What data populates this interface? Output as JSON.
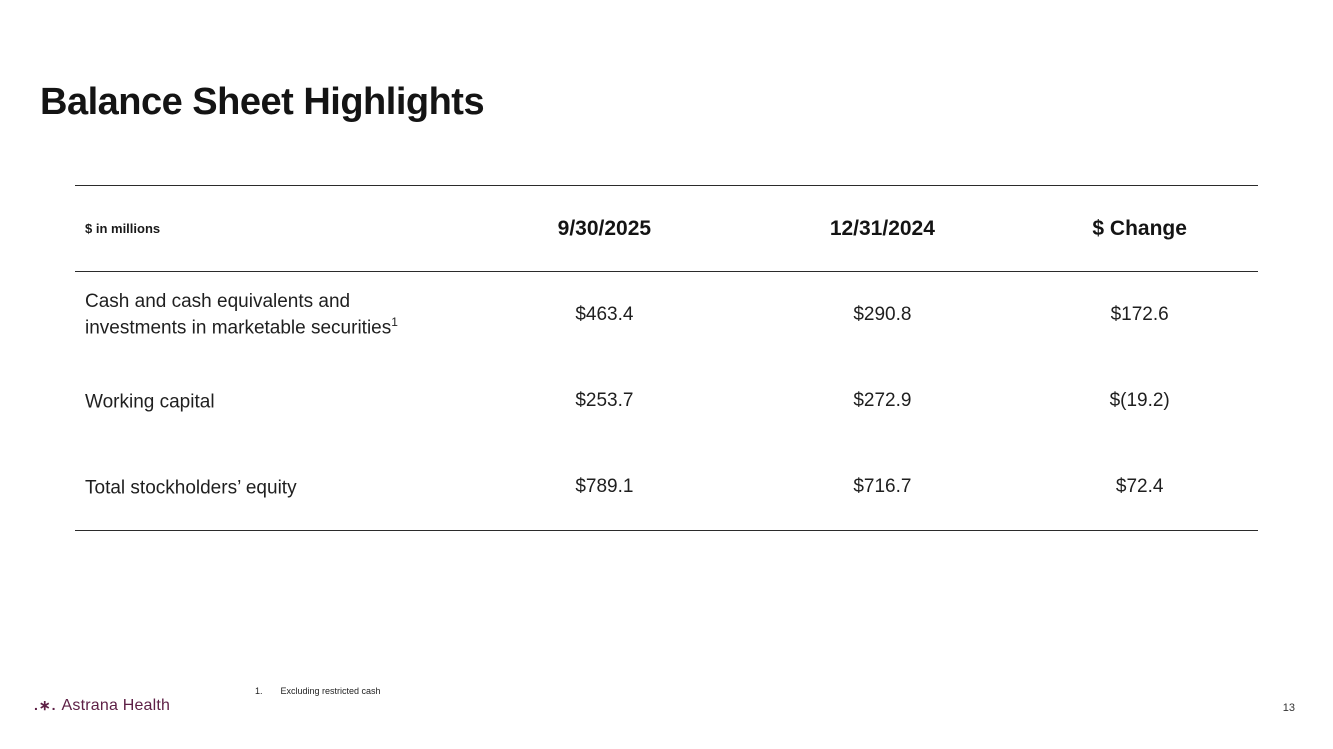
{
  "slide": {
    "title": "Balance Sheet Highlights",
    "page_number": "13",
    "footnote": {
      "index": "1.",
      "text": "Excluding restricted cash"
    },
    "logo": {
      "mark": ".∗.",
      "text": "Astrana Health",
      "color": "#5e2046"
    }
  },
  "table": {
    "unit_label": "$ in millions",
    "columns": [
      "9/30/2025",
      "12/31/2024",
      "$ Change"
    ],
    "rows": [
      {
        "label": "Cash and cash equivalents and investments in marketable securities",
        "superscript": "1",
        "values": [
          "$463.4",
          "$290.8",
          "$172.6"
        ]
      },
      {
        "label": "Working capital",
        "superscript": "",
        "values": [
          "$253.7",
          "$272.9",
          "$(19.2)"
        ]
      },
      {
        "label": "Total stockholders’ equity",
        "superscript": "",
        "values": [
          "$789.1",
          "$716.7",
          "$72.4"
        ]
      }
    ]
  }
}
